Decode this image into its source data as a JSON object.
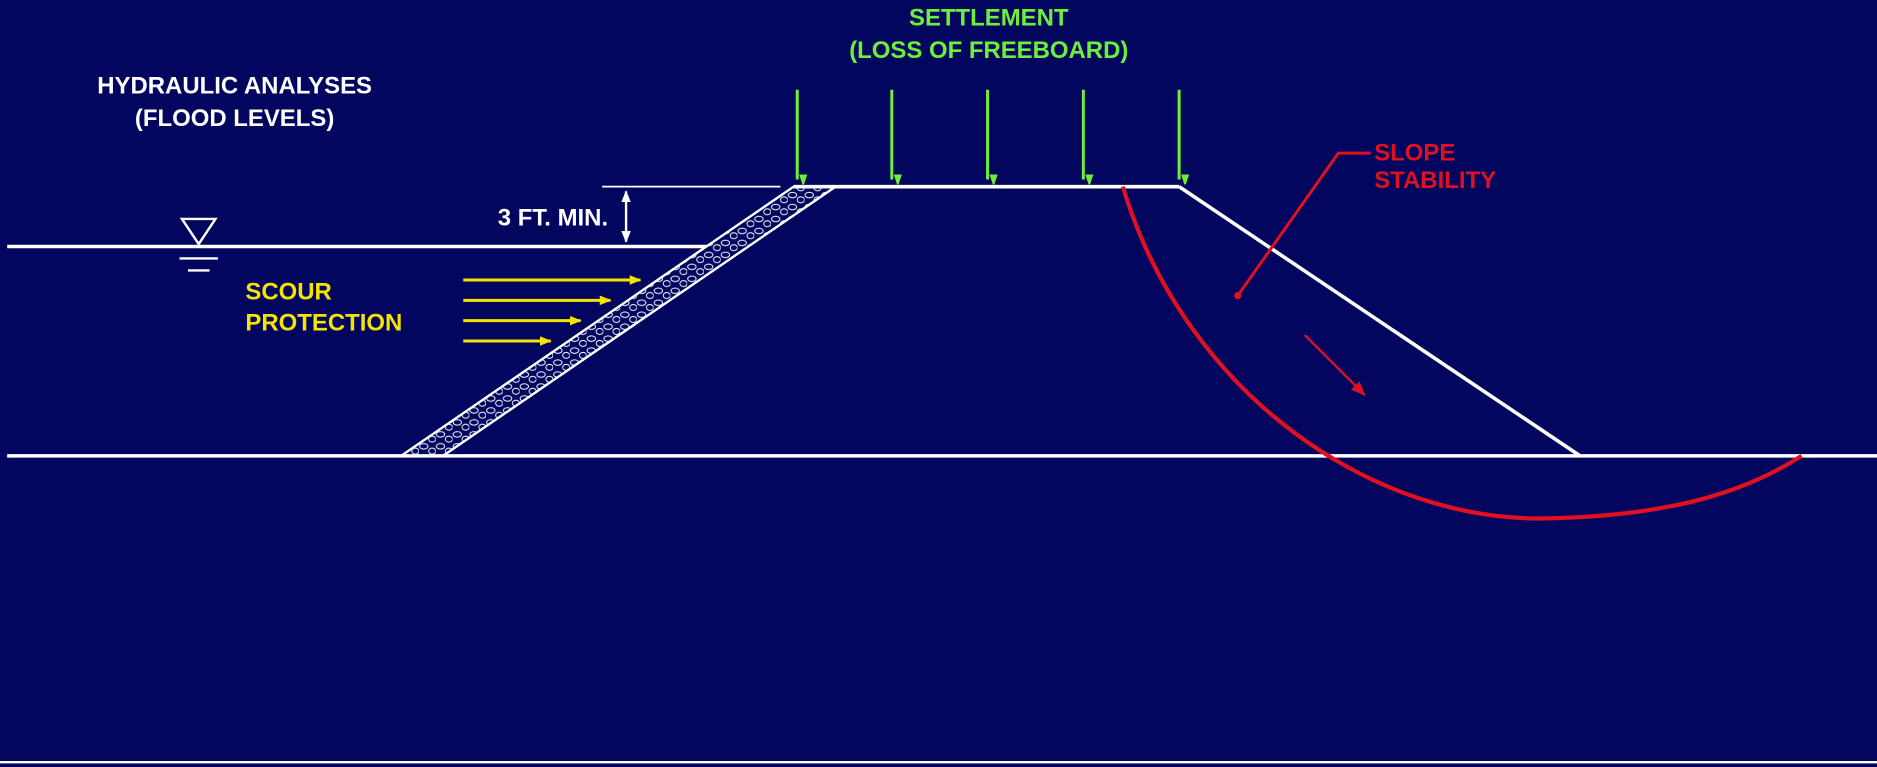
{
  "hydraulic": {
    "lines": [
      "HYDRAULIC ANALYSES",
      "(FLOOD LEVELS)"
    ]
  },
  "settlement": {
    "lines": [
      "SETTLEMENT",
      "(LOSS OF FREEBOARD)"
    ]
  },
  "freeboard": {
    "label": "3 FT. MIN."
  },
  "scour": {
    "lines": [
      "SCOUR",
      "PROTECTION"
    ]
  },
  "slope": {
    "lines": [
      "SLOPE",
      "STABILITY"
    ]
  }
}
